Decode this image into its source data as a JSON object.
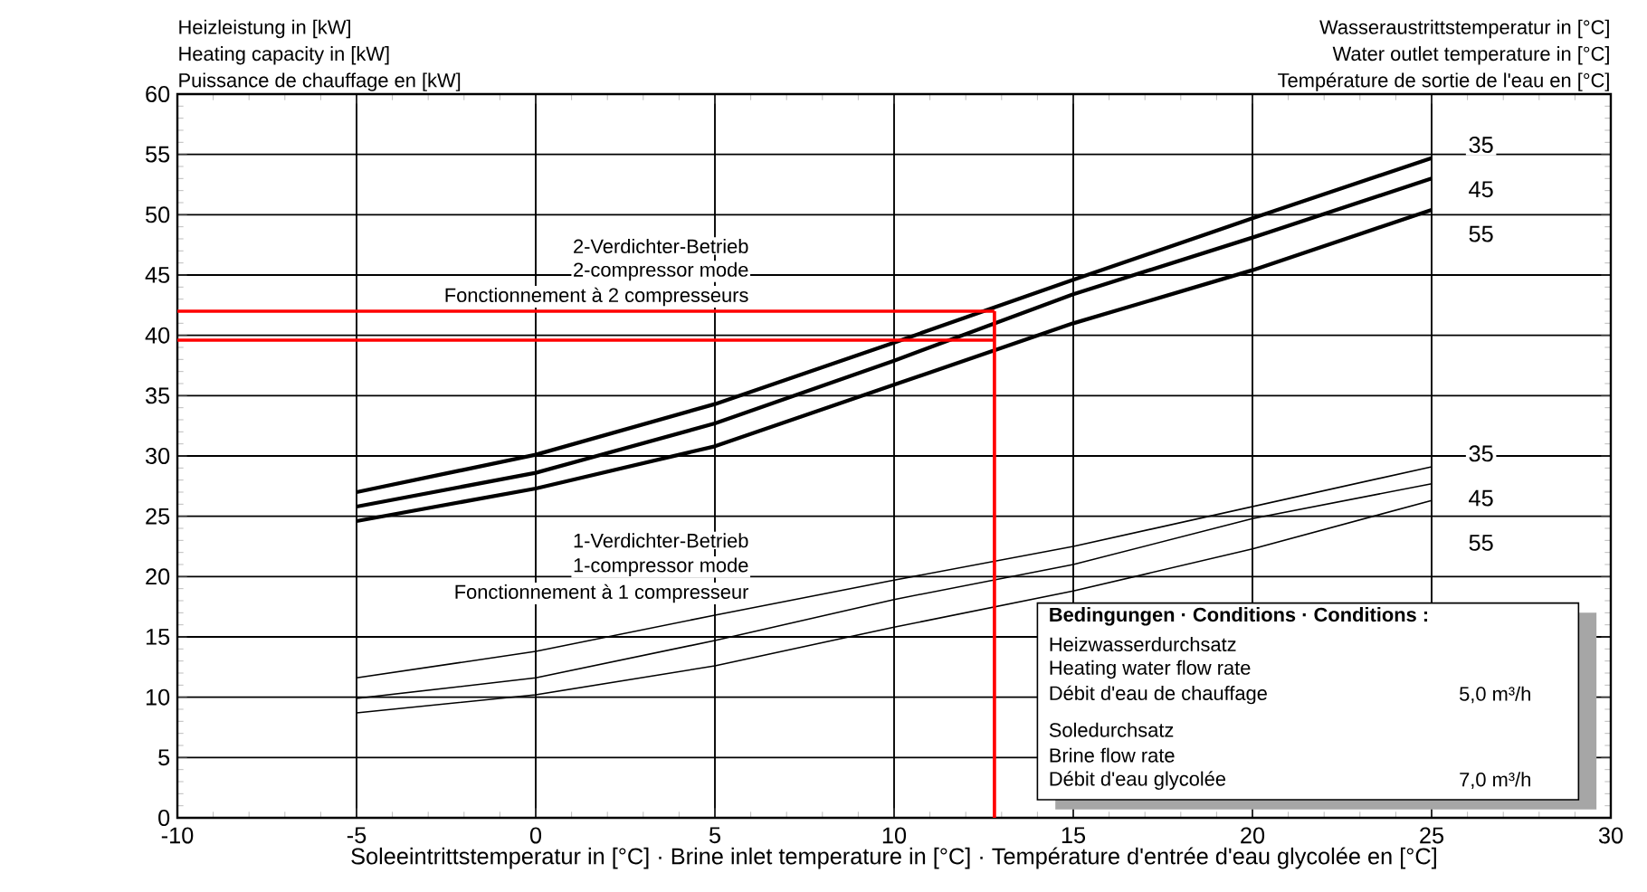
{
  "chart_data": {
    "type": "line",
    "ylabel": "Heizleistung in [kW]",
    "xlabel": "Soleeintrittstemperatur in [°C] · Brine inlet temperature in [°C] · Température d'entrée d'eau glycolée en [°C]",
    "legend_title": "Wasseraustrittstemperatur in [°C]",
    "x": [
      -5,
      0,
      5,
      10,
      15,
      20,
      25
    ],
    "series": [
      {
        "name": "35",
        "color": "#000000",
        "values": [
          27.0,
          30.1,
          34.3,
          39.4,
          44.6,
          49.7,
          54.7
        ]
      },
      {
        "name": "45",
        "color": "#000000",
        "values": [
          25.8,
          28.6,
          32.7,
          37.9,
          43.4,
          48.1,
          53.0
        ]
      },
      {
        "name": "55",
        "color": "#000000",
        "values": [
          24.6,
          27.3,
          30.8,
          35.9,
          41.0,
          45.4,
          50.4
        ]
      },
      {
        "name": "35",
        "color": "#000000",
        "values": [
          11.6,
          13.8,
          16.8,
          19.7,
          22.5,
          25.8,
          29.1
        ]
      },
      {
        "name": "45",
        "color": "#000000",
        "values": [
          9.9,
          11.6,
          14.7,
          18.1,
          21.0,
          24.8,
          27.7
        ]
      },
      {
        "name": "55",
        "color": "#000000",
        "values": [
          8.7,
          10.2,
          12.6,
          15.8,
          18.8,
          22.3,
          26.3
        ]
      }
    ],
    "ref_lines": [
      {
        "axis": "y",
        "value": 42.0,
        "color": "#ff0000"
      },
      {
        "axis": "y",
        "value": 39.6,
        "color": "#ff0000"
      },
      {
        "axis": "x",
        "value": 12.8,
        "color": "#ff0000"
      }
    ],
    "xlim": [
      -10,
      30
    ],
    "ylim": [
      0,
      60
    ],
    "xticks": [
      -10,
      -5,
      0,
      5,
      10,
      15,
      20,
      25,
      30
    ],
    "yticks": [
      0,
      5,
      10,
      15,
      20,
      25,
      30,
      35,
      40,
      45,
      50,
      55,
      60
    ],
    "grid": true,
    "annotations": [
      "Heating capacity in [kW]",
      "Puissance de chauffage en [kW]",
      "Water outlet temperature in [°C]",
      "Température de sortie de l'eau en [°C]",
      "2-Verdichter-Betrieb",
      "2-compressor mode",
      "Fonctionnement à 2 compresseurs",
      "1-Verdichter-Betrieb",
      "1-compressor mode",
      "Fonctionnement à 1 compresseur",
      "Bedingungen · Conditions · Conditions :",
      "Heizwasserdurchsatz",
      "Heating water flow rate",
      "Débit d'eau de chauffage",
      "5,0 m³/h",
      "Soledurchsatz",
      "Brine flow rate",
      "Débit d'eau glycolée",
      "7,0 m³/h"
    ]
  }
}
